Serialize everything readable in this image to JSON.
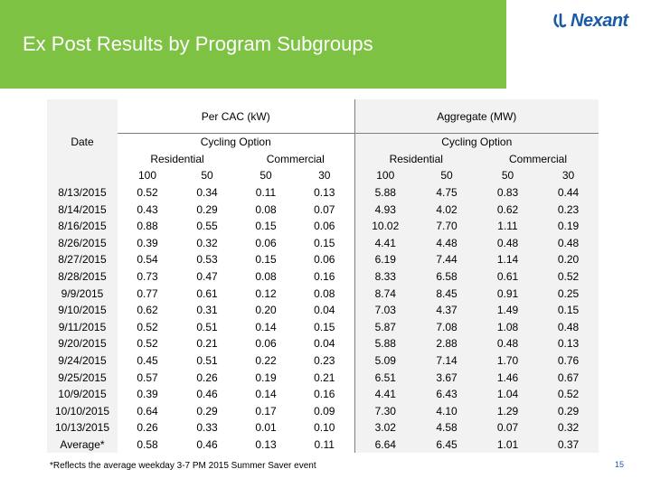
{
  "header": {
    "title": "Ex Post Results by Program Subgroups",
    "logo_text": "Nexant"
  },
  "table": {
    "date_label": "Date",
    "group1_label": "Per CAC (kW)",
    "group2_label": "Aggregate (MW)",
    "cycling_label": "Cycling Option",
    "residential_label": "Residential",
    "commercial_label": "Commercial",
    "cycling_values": [
      "100",
      "50",
      "50",
      "30",
      "100",
      "50",
      "50",
      "30"
    ],
    "rows": [
      [
        "8/13/2015",
        "0.52",
        "0.34",
        "0.11",
        "0.13",
        "5.88",
        "4.75",
        "0.83",
        "0.44"
      ],
      [
        "8/14/2015",
        "0.43",
        "0.29",
        "0.08",
        "0.07",
        "4.93",
        "4.02",
        "0.62",
        "0.23"
      ],
      [
        "8/16/2015",
        "0.88",
        "0.55",
        "0.15",
        "0.06",
        "10.02",
        "7.70",
        "1.11",
        "0.19"
      ],
      [
        "8/26/2015",
        "0.39",
        "0.32",
        "0.06",
        "0.15",
        "4.41",
        "4.48",
        "0.48",
        "0.48"
      ],
      [
        "8/27/2015",
        "0.54",
        "0.53",
        "0.15",
        "0.06",
        "6.19",
        "7.44",
        "1.14",
        "0.20"
      ],
      [
        "8/28/2015",
        "0.73",
        "0.47",
        "0.08",
        "0.16",
        "8.33",
        "6.58",
        "0.61",
        "0.52"
      ],
      [
        "9/9/2015",
        "0.77",
        "0.61",
        "0.12",
        "0.08",
        "8.74",
        "8.45",
        "0.91",
        "0.25"
      ],
      [
        "9/10/2015",
        "0.62",
        "0.31",
        "0.20",
        "0.04",
        "7.03",
        "4.37",
        "1.49",
        "0.15"
      ],
      [
        "9/11/2015",
        "0.52",
        "0.51",
        "0.14",
        "0.15",
        "5.87",
        "7.08",
        "1.08",
        "0.48"
      ],
      [
        "9/20/2015",
        "0.52",
        "0.21",
        "0.06",
        "0.04",
        "5.88",
        "2.88",
        "0.48",
        "0.13"
      ],
      [
        "9/24/2015",
        "0.45",
        "0.51",
        "0.22",
        "0.23",
        "5.09",
        "7.14",
        "1.70",
        "0.76"
      ],
      [
        "9/25/2015",
        "0.57",
        "0.26",
        "0.19",
        "0.21",
        "6.51",
        "3.67",
        "1.46",
        "0.67"
      ],
      [
        "10/9/2015",
        "0.39",
        "0.46",
        "0.14",
        "0.16",
        "4.41",
        "6.43",
        "1.04",
        "0.52"
      ],
      [
        "10/10/2015",
        "0.64",
        "0.29",
        "0.17",
        "0.09",
        "7.30",
        "4.10",
        "1.29",
        "0.29"
      ],
      [
        "10/13/2015",
        "0.26",
        "0.33",
        "0.01",
        "0.10",
        "3.02",
        "4.58",
        "0.07",
        "0.32"
      ],
      [
        "Average*",
        "0.58",
        "0.46",
        "0.13",
        "0.11",
        "6.64",
        "6.45",
        "1.01",
        "0.37"
      ]
    ]
  },
  "footnote": "*Reflects the average weekday 3-7 PM 2015 Summer Saver event",
  "page_number": "15",
  "colors": {
    "title_bar": "#7dc242",
    "logo_blue": "#1a5aa6",
    "band": "#f2f2f2"
  }
}
